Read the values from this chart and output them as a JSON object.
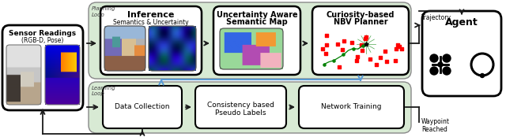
{
  "bg_color": "#ffffff",
  "light_green": "#d8ead4",
  "box_fill": "#ffffff",
  "box_edge": "#222222",
  "arrow_color": "#1a1a1a",
  "blue_arrow_color": "#5b9bd5",
  "sensor_label1": "Sensor Readings",
  "sensor_label2": "(RGB-D, Pose)",
  "inference_label1": "Inference",
  "inference_label2": "Semantics & Uncertainty",
  "uncertainty_label1": "Uncertainty Aware",
  "uncertainty_label2": "Semantic Map",
  "curiosity_label1": "Curiosity-based",
  "curiosity_label2": "NBV Planner",
  "agent_label": "Agent",
  "data_collection_label": "Data Collection",
  "consistency_label1": "Consistency based",
  "consistency_label2": "Pseudo Labels",
  "network_label": "Network Training",
  "planning_loop": "Planning\nLoop",
  "learning_loop": "Learning\nLoop",
  "trajectory_label": "Trajectory",
  "waypoint_label": "Waypoint\nReached"
}
